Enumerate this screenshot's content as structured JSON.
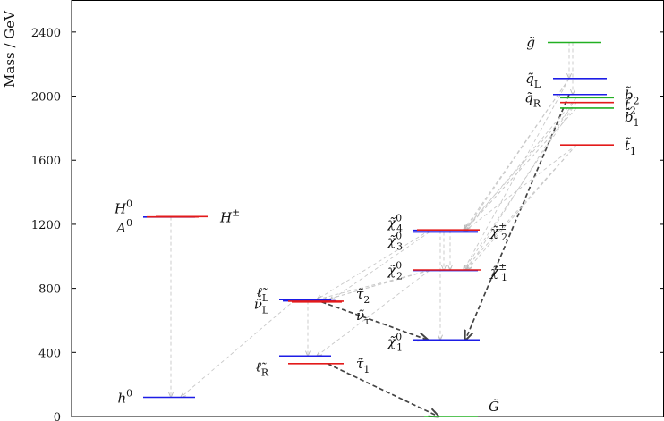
{
  "chart_data": {
    "type": "level-diagram",
    "ylabel": "Mass / GeV",
    "ylim": [
      0,
      2600
    ],
    "yticks": [
      0,
      400,
      800,
      1200,
      1600,
      2000,
      2400
    ],
    "colors": {
      "blue": "#1d1de6",
      "red": "#e31a1a",
      "green": "#22b022",
      "arrow_light": "#c8c8c8",
      "arrow_dark": "#444444"
    },
    "levels": [
      {
        "id": "h0",
        "col": 0,
        "mass": 120,
        "color": "blue",
        "label": "h",
        "sup": "0",
        "side": "left"
      },
      {
        "id": "A0",
        "col": 0,
        "mass": 1245,
        "color": "blue",
        "label": "A",
        "sup": "0",
        "side": "left"
      },
      {
        "id": "H0",
        "col": 0,
        "mass": 1246,
        "color": "red",
        "label": "H",
        "sup": "0",
        "side": "left"
      },
      {
        "id": "Hpm",
        "col": 0,
        "mass": 1248,
        "color": "red",
        "label": "H",
        "sup": "±",
        "side": "right"
      },
      {
        "id": "eL",
        "col": 1,
        "mass": 730,
        "color": "blue",
        "label": "ℓ̃L",
        "sup": "",
        "side": "left"
      },
      {
        "id": "nuL",
        "col": 1,
        "mass": 722,
        "color": "blue",
        "label": "ν̃L",
        "sup": "",
        "side": "left"
      },
      {
        "id": "tau2",
        "col": 1,
        "mass": 720,
        "color": "red",
        "label": "τ̃2",
        "sup": "",
        "side": "right"
      },
      {
        "id": "nutau",
        "col": 1,
        "mass": 715,
        "color": "red",
        "label": "ν̃τ",
        "sup": "",
        "side": "right"
      },
      {
        "id": "eR",
        "col": 1,
        "mass": 378,
        "color": "blue",
        "label": "ℓ̃R",
        "sup": "",
        "side": "left"
      },
      {
        "id": "tau1",
        "col": 1,
        "mass": 330,
        "color": "red",
        "label": "τ̃1",
        "sup": "",
        "side": "right"
      },
      {
        "id": "G",
        "col": 2,
        "mass": 0,
        "color": "green",
        "label": "G̃",
        "sup": "",
        "side": "right"
      },
      {
        "id": "chi10",
        "col": 2,
        "mass": 478,
        "color": "blue",
        "label": "χ̃",
        "sup": "0",
        "sub": "1",
        "side": "left"
      },
      {
        "id": "chi20",
        "col": 2,
        "mass": 912,
        "color": "blue",
        "label": "χ̃",
        "sup": "0",
        "sub": "2",
        "side": "left"
      },
      {
        "id": "chi1p",
        "col": 2,
        "mass": 915,
        "color": "red",
        "label": "χ̃",
        "sup": "±",
        "sub": "1",
        "side": "right"
      },
      {
        "id": "chi30",
        "col": 2,
        "mass": 1152,
        "color": "blue",
        "label": "χ̃",
        "sup": "0",
        "sub": "3",
        "side": "left"
      },
      {
        "id": "chi40",
        "col": 2,
        "mass": 1162,
        "color": "blue",
        "label": "χ̃",
        "sup": "0",
        "sub": "4",
        "side": "left"
      },
      {
        "id": "chi2p",
        "col": 2,
        "mass": 1165,
        "color": "red",
        "label": "χ̃",
        "sup": "±",
        "sub": "2",
        "side": "right"
      },
      {
        "id": "gluino",
        "col": 3,
        "mass": 2335,
        "color": "green",
        "label": "g̃",
        "sup": "",
        "side": "left"
      },
      {
        "id": "qL",
        "col": 3,
        "mass": 2110,
        "color": "blue",
        "label": "q̃L",
        "sup": "",
        "side": "left"
      },
      {
        "id": "qR",
        "col": 3,
        "mass": 2010,
        "color": "blue",
        "label": "q̃R",
        "sup": "",
        "side": "left"
      },
      {
        "id": "b2",
        "col": 3,
        "mass": 1990,
        "color": "green",
        "label": "b̃2",
        "sup": "",
        "side": "right"
      },
      {
        "id": "t2",
        "col": 3,
        "mass": 1960,
        "color": "red",
        "label": "t̃2",
        "sup": "",
        "side": "right"
      },
      {
        "id": "b1",
        "col": 3,
        "mass": 1925,
        "color": "green",
        "label": "b̃1",
        "sup": "",
        "side": "right"
      },
      {
        "id": "t1",
        "col": 3,
        "mass": 1695,
        "color": "red",
        "label": "t̃1",
        "sup": "",
        "side": "right"
      }
    ],
    "labels_text": {
      "h0": "h",
      "A0": "A",
      "H0": "H",
      "Hpm": "H",
      "eL": "ℓ̃",
      "eL_sub": "L",
      "nuL": "ν̃",
      "nuL_sub": "L",
      "tau2": "τ̃",
      "tau2_sub": "2",
      "nutau": "ν̃",
      "nutau_sub": "τ",
      "eR": "ℓ̃",
      "eR_sub": "R",
      "tau1": "τ̃",
      "tau1_sub": "1",
      "G": "G̃",
      "gluino": "g̃",
      "qL": "q̃",
      "qL_sub": "L",
      "qR": "q̃",
      "qR_sub": "R",
      "b2": "b̃",
      "b2_sub": "2",
      "t2": "t̃",
      "t2_sub": "2",
      "b1": "b̃",
      "b1_sub": "1",
      "t1": "t̃",
      "t1_sub": "1"
    },
    "decays": [
      {
        "from": "gluino",
        "to": "qL",
        "style": "light"
      },
      {
        "from": "gluino",
        "to": "qR",
        "style": "light"
      },
      {
        "from": "qL",
        "to": "chi40",
        "style": "light"
      },
      {
        "from": "qL",
        "to": "chi2p",
        "style": "light"
      },
      {
        "from": "qL",
        "to": "chi20",
        "style": "light"
      },
      {
        "from": "qR",
        "to": "chi10",
        "style": "dark"
      },
      {
        "from": "b2",
        "to": "chi30",
        "style": "light"
      },
      {
        "from": "b2",
        "to": "chi1p",
        "style": "light"
      },
      {
        "from": "t2",
        "to": "chi40",
        "style": "light"
      },
      {
        "from": "t2",
        "to": "chi20",
        "style": "light"
      },
      {
        "from": "b1",
        "to": "chi30",
        "style": "light"
      },
      {
        "from": "b1",
        "to": "chi2p",
        "style": "light"
      },
      {
        "from": "t1",
        "to": "chi20",
        "style": "light"
      },
      {
        "from": "t1",
        "to": "chi1p",
        "style": "light"
      },
      {
        "from": "t1",
        "to": "chi30",
        "style": "light"
      },
      {
        "from": "chi40",
        "to": "chi10",
        "style": "light"
      },
      {
        "from": "chi30",
        "to": "chi20",
        "style": "light"
      },
      {
        "from": "chi2p",
        "to": "chi1p",
        "style": "light"
      },
      {
        "from": "chi20",
        "to": "eL",
        "style": "light"
      },
      {
        "from": "chi20",
        "to": "nuL",
        "style": "light"
      },
      {
        "from": "chi1p",
        "to": "nuL",
        "style": "light"
      },
      {
        "from": "chi40",
        "to": "eL",
        "style": "light"
      },
      {
        "from": "chi30",
        "to": "tau2",
        "style": "light"
      },
      {
        "from": "chi20",
        "to": "eR",
        "style": "light"
      },
      {
        "from": "eL",
        "to": "chi10",
        "style": "dark"
      },
      {
        "from": "nuL",
        "to": "eR",
        "style": "light"
      },
      {
        "from": "tau1",
        "to": "G",
        "style": "dark"
      },
      {
        "from": "eL",
        "to": "h0",
        "style": "light"
      },
      {
        "from": "H0",
        "to": "h0",
        "style": "light"
      }
    ]
  }
}
